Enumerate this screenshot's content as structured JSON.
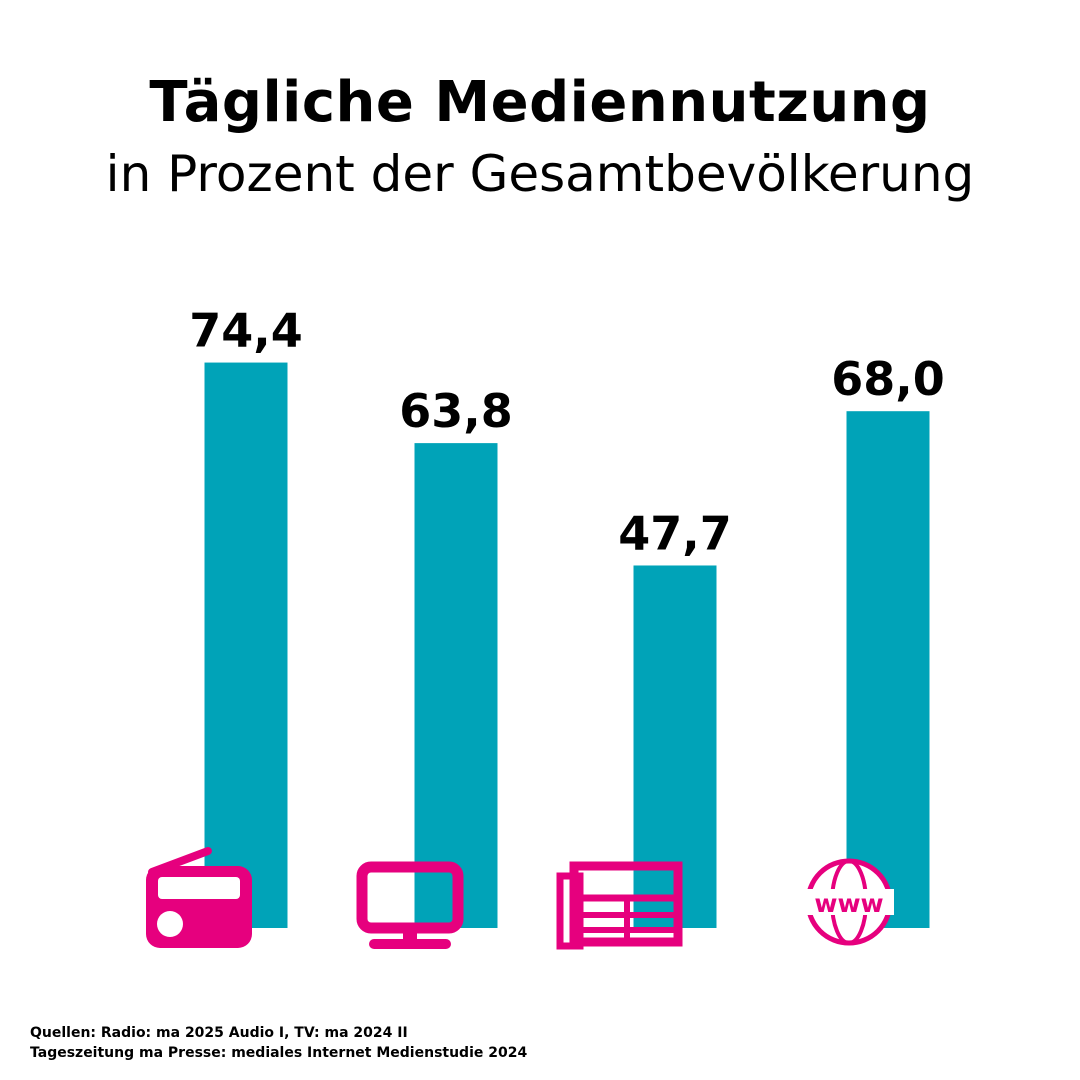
{
  "header": {
    "title": "Tägliche Mediennutzung",
    "subtitle": "in Prozent der Gesamtbevölkerung"
  },
  "chart_data": {
    "type": "bar",
    "title": "Tägliche Mediennutzung",
    "subtitle": "in Prozent der Gesamtbevölkerung",
    "categories": [
      "Radio",
      "TV",
      "Tageszeitung",
      "Internet"
    ],
    "values": [
      74.4,
      63.8,
      47.7,
      68.0
    ],
    "value_labels": [
      "74,4",
      "63,8",
      "47,7",
      "68,0"
    ],
    "category_icons": [
      "radio-icon",
      "tv-icon",
      "newspaper-icon",
      "globe-www-icon"
    ],
    "ylim": [
      0,
      100
    ],
    "grid": false,
    "legend": "none",
    "colors": {
      "bar": "#00a3b8",
      "icon": "#e6007e",
      "text": "#000000"
    }
  },
  "footer": {
    "line1": "Quellen: Radio: ma 2025 Audio I, TV: ma 2024 II",
    "line2": "Tageszeitung ma Presse: mediales Internet Medienstudie 2024"
  }
}
